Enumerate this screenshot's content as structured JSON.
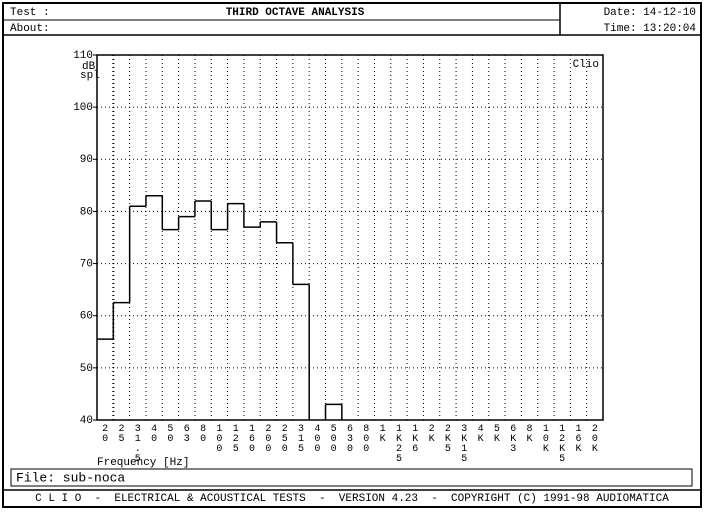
{
  "header": {
    "test_label": "Test :",
    "title": "THIRD OCTAVE ANALYSIS",
    "about_label": "About:",
    "date": "Date: 14-12-10",
    "time": "Time: 13:20:04"
  },
  "chart_data": {
    "type": "step",
    "y_label": [
      "dB",
      "spl"
    ],
    "x_label": "Frequency [Hz]",
    "annotation": "Clio",
    "categories": [
      "20",
      "25",
      "31.5",
      "40",
      "50",
      "63",
      "80",
      "100",
      "125",
      "160",
      "200",
      "250",
      "315",
      "400",
      "500",
      "630",
      "800",
      "1K",
      "1K25",
      "1K6",
      "2K",
      "2K5",
      "3K15",
      "4K",
      "5K",
      "6K3",
      "8K",
      "10K",
      "12K5",
      "16K",
      "20K"
    ],
    "values": [
      55.5,
      62.5,
      81,
      83,
      76.5,
      79,
      82,
      76.5,
      81.5,
      77,
      78,
      74,
      66,
      null,
      43,
      null,
      null,
      null,
      null,
      null,
      null,
      null,
      null,
      null,
      null,
      null,
      null,
      null,
      null,
      null,
      null
    ],
    "color": "#000000",
    "ylim": [
      40,
      110
    ],
    "yticks": [
      40,
      50,
      60,
      70,
      80,
      90,
      100,
      110
    ],
    "grid": true
  },
  "file": "File: sub-noca",
  "footer": "C L I O  -  ELECTRICAL & ACOUSTICAL TESTS  -  VERSION 4.23  -  COPYRIGHT (C) 1991-98 AUDIOMATICA"
}
